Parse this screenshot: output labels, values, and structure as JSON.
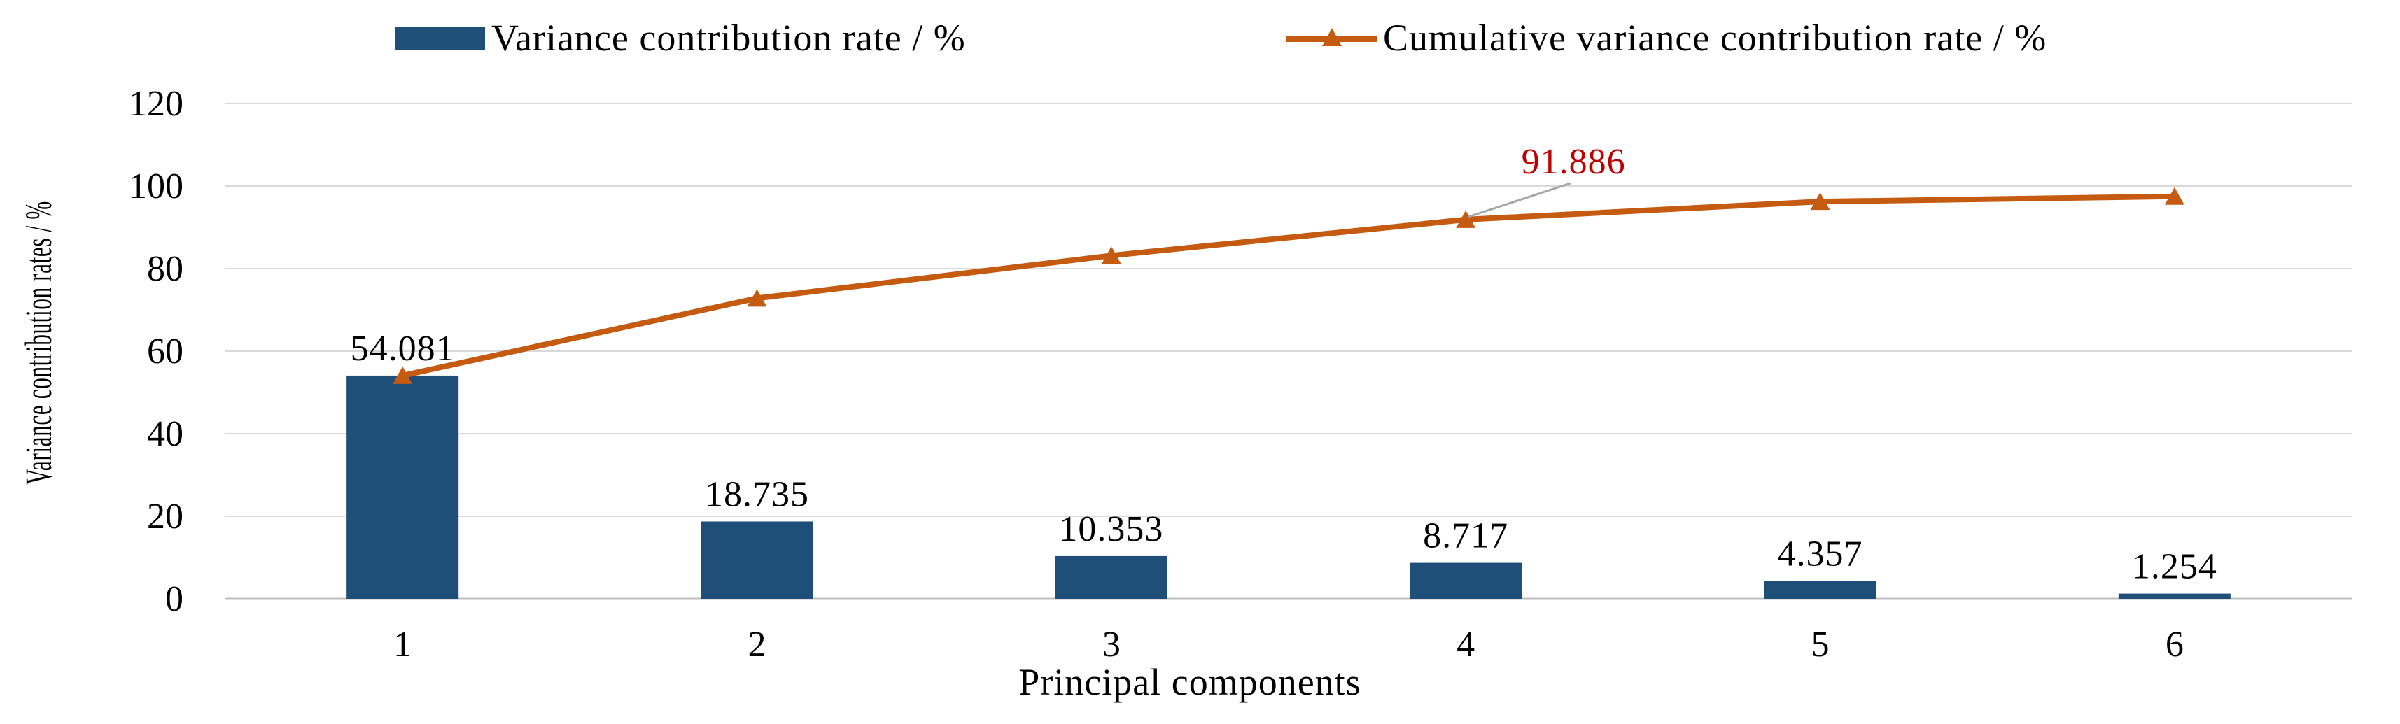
{
  "chart_data": {
    "type": "bar",
    "title": "",
    "xlabel": "Principal  components",
    "ylabel": "Variance contribution rates / %",
    "categories": [
      "1",
      "2",
      "3",
      "4",
      "5",
      "6"
    ],
    "ylim": [
      0,
      120
    ],
    "yticks": [
      0,
      20,
      40,
      60,
      80,
      100,
      120
    ],
    "grid": true,
    "legend_position": "top",
    "series": [
      {
        "name": "Variance contribution rate / %",
        "type": "bar",
        "color": "#1f4e79",
        "values": [
          54.081,
          18.735,
          10.353,
          8.717,
          4.357,
          1.254
        ]
      },
      {
        "name": "Cumulative variance contribution rate / %",
        "type": "line",
        "marker": "triangle",
        "color": "#c55a11",
        "values": [
          54.081,
          72.816,
          83.169,
          91.886,
          96.243,
          97.497
        ]
      }
    ],
    "bar_labels": [
      "54.081",
      "18.735",
      "10.353",
      "8.717",
      "4.357",
      "1.254"
    ],
    "annotations": [
      {
        "text": "91.886",
        "category": "4",
        "value": 91.886,
        "color": "#c00000"
      }
    ]
  }
}
